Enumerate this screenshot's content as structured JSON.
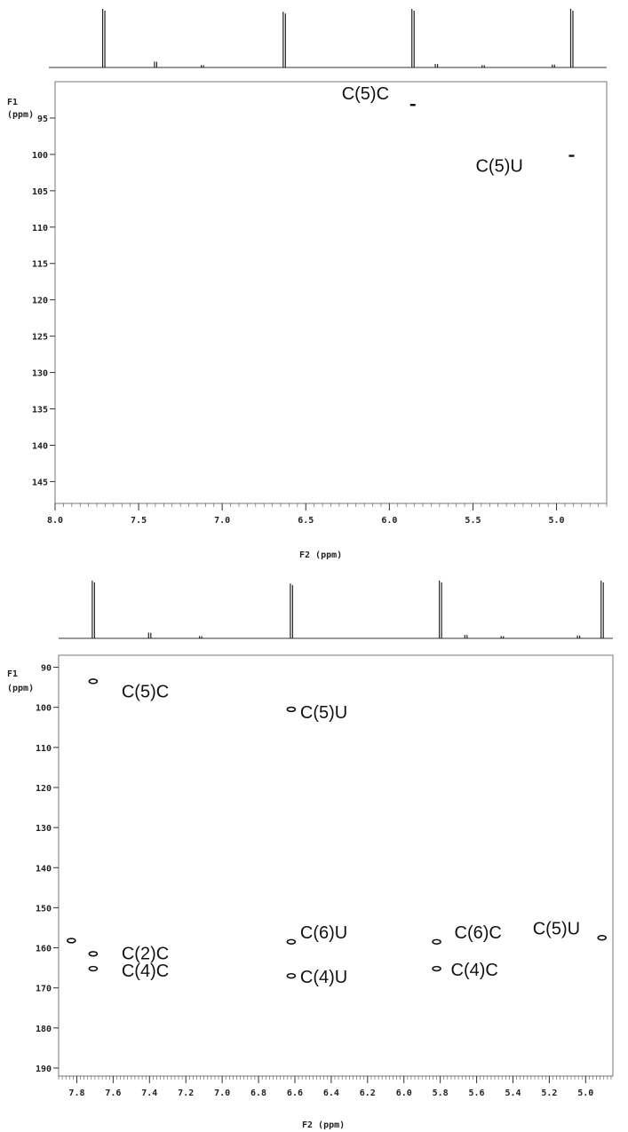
{
  "chart_data": [
    {
      "type": "scatter",
      "xlabel": "F2 (ppm)",
      "ylabel_line1": "F1",
      "ylabel_line2": "(ppm)",
      "xlim": [
        8.0,
        4.7
      ],
      "ylim": [
        90,
        148
      ],
      "x_ticks": [
        8.0,
        7.5,
        7.0,
        6.5,
        6.0,
        5.5,
        5.0
      ],
      "x_tick_labels": [
        "8.0",
        "7.5",
        "7.0",
        "6.5",
        "6.0",
        "5.5",
        "5.0"
      ],
      "y_ticks": [
        95,
        100,
        105,
        110,
        115,
        120,
        125,
        130,
        135,
        140,
        145
      ],
      "y_tick_labels": [
        "95",
        "100",
        "105",
        "110",
        "115",
        "120",
        "125",
        "130",
        "135",
        "140",
        "145"
      ],
      "projection_peaks": [
        {
          "x": 7.71,
          "height": 1.0
        },
        {
          "x": 7.4,
          "height": 0.1
        },
        {
          "x": 7.12,
          "height": 0.04
        },
        {
          "x": 6.63,
          "height": 0.95
        },
        {
          "x": 5.86,
          "height": 1.0
        },
        {
          "x": 5.72,
          "height": 0.06
        },
        {
          "x": 5.44,
          "height": 0.04
        },
        {
          "x": 5.02,
          "height": 0.05
        },
        {
          "x": 4.91,
          "height": 1.0
        }
      ],
      "cross_peaks": [
        {
          "x": 5.86,
          "y": 93.2,
          "label": "C(5)C"
        },
        {
          "x": 4.91,
          "y": 100.2,
          "label": "C(5)U"
        }
      ]
    },
    {
      "type": "scatter",
      "xlabel": "F2 (ppm)",
      "ylabel_line1": "F1",
      "ylabel_line2": "(ppm)",
      "xlim": [
        7.9,
        4.85
      ],
      "ylim": [
        87,
        192
      ],
      "x_ticks": [
        7.8,
        7.6,
        7.4,
        7.2,
        7.0,
        6.8,
        6.6,
        6.4,
        6.2,
        6.0,
        5.8,
        5.6,
        5.4,
        5.2,
        5.0
      ],
      "x_tick_labels": [
        "7.8",
        "7.6",
        "7.4",
        "7.2",
        "7.0",
        "6.8",
        "6.6",
        "6.4",
        "6.2",
        "6.0",
        "5.8",
        "5.6",
        "5.4",
        "5.2",
        "5.0"
      ],
      "y_ticks": [
        90,
        100,
        110,
        120,
        130,
        140,
        150,
        160,
        170,
        180,
        190
      ],
      "y_tick_labels": [
        "90",
        "100",
        "110",
        "120",
        "130",
        "140",
        "150",
        "160",
        "170",
        "180",
        "190"
      ],
      "projection_peaks": [
        {
          "x": 7.71,
          "height": 1.0
        },
        {
          "x": 7.4,
          "height": 0.1
        },
        {
          "x": 7.12,
          "height": 0.04
        },
        {
          "x": 6.62,
          "height": 0.95
        },
        {
          "x": 5.8,
          "height": 1.0
        },
        {
          "x": 5.66,
          "height": 0.06
        },
        {
          "x": 5.46,
          "height": 0.04
        },
        {
          "x": 5.04,
          "height": 0.05
        },
        {
          "x": 4.91,
          "height": 1.0
        }
      ],
      "cross_peaks": [
        {
          "x": 7.71,
          "y": 93.5,
          "label": "C(5)C"
        },
        {
          "x": 6.62,
          "y": 100.5,
          "label": "C(5)U"
        },
        {
          "x": 6.62,
          "y": 158.5,
          "label": "C(6)U"
        },
        {
          "x": 5.82,
          "y": 158.5,
          "label": "C(6)C"
        },
        {
          "x": 4.91,
          "y": 157.5,
          "label": "C(5)U"
        },
        {
          "x": 7.71,
          "y": 161.5,
          "label": "C(2)C"
        },
        {
          "x": 7.71,
          "y": 165.2,
          "label": "C(4)C"
        },
        {
          "x": 6.62,
          "y": 167.0,
          "label": "C(4)U"
        },
        {
          "x": 5.82,
          "y": 165.2,
          "label": "C(4)C"
        },
        {
          "x": 7.83,
          "y": 158.2,
          "label": ""
        }
      ]
    }
  ]
}
